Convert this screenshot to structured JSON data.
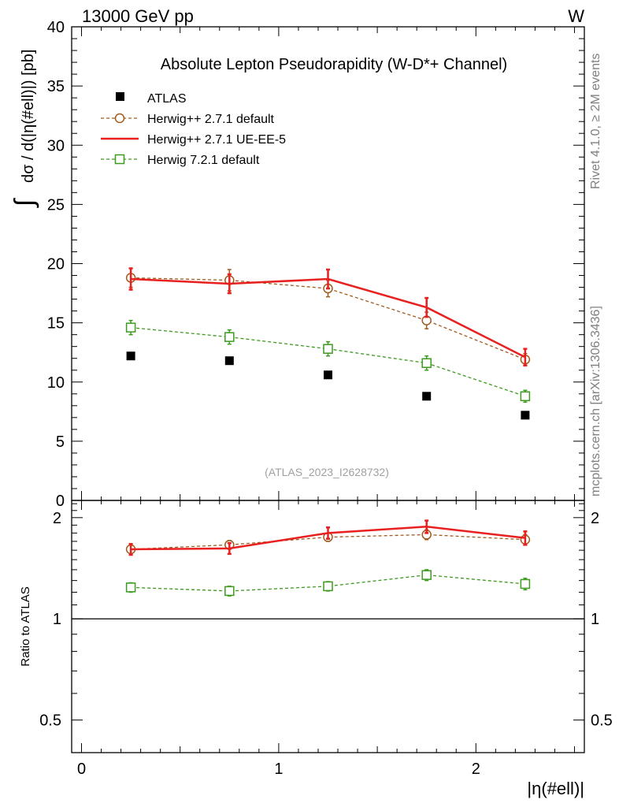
{
  "header": {
    "energy_label": "13000 GeV pp",
    "process_label": "W"
  },
  "side_labels": {
    "rivet": "Rivet 4.1.0, ≥ 2M events",
    "source": "mcplots.cern.ch [arXiv:1306.3436]"
  },
  "chart_data": {
    "type": "line",
    "title": "Absolute Lepton Pseudorapidity (W-D*+ Channel)",
    "analysis_tag": "(ATLAS_2023_I2628732)",
    "xlabel": "|η(#ell)|",
    "ylabel_integral": "∫",
    "ylabel": "dσ / d(|η(#ell)|) [pb]",
    "ratio_ylabel": "Ratio to ATLAS",
    "xlim": [
      -0.05,
      2.55
    ],
    "ylim": [
      0,
      40
    ],
    "ratio_ylim": [
      0.4,
      2.25
    ],
    "x_ticks": [
      0,
      1,
      2
    ],
    "x_tick_labels": [
      "0",
      "1",
      "2"
    ],
    "y_ticks": [
      0,
      5,
      10,
      15,
      20,
      25,
      30,
      35,
      40
    ],
    "y_tick_labels": [
      "0",
      "5",
      "10",
      "15",
      "20",
      "25",
      "30",
      "35",
      "40"
    ],
    "ratio_ticks": [
      0.5,
      1,
      2
    ],
    "ratio_tick_labels": [
      "0.5",
      "1",
      "2"
    ],
    "x": [
      0.25,
      0.75,
      1.25,
      1.75,
      2.25
    ],
    "x_edges": [
      0,
      0.5,
      1.0,
      1.5,
      2.0,
      2.5
    ],
    "data": {
      "name": "ATLAS",
      "values": [
        12.2,
        11.8,
        10.6,
        8.8,
        7.2
      ],
      "color": "#000000"
    },
    "series": [
      {
        "name": "Herwig++ 2.7.1 default",
        "style": "dashed-circle",
        "color": "#a05a1e",
        "values": [
          18.8,
          18.6,
          17.9,
          15.2,
          11.9
        ],
        "errors": [
          0.8,
          0.9,
          0.7,
          0.7,
          0.5
        ],
        "ratio": [
          1.61,
          1.66,
          1.75,
          1.78,
          1.72
        ],
        "ratio_errors": [
          0.05,
          0.05,
          0.05,
          0.06,
          0.06
        ]
      },
      {
        "name": "Herwig++ 2.7.1 UE-EE-5",
        "style": "solid",
        "color": "#e8201f",
        "values": [
          18.7,
          18.3,
          18.7,
          16.3,
          12.1
        ],
        "errors": [
          0.9,
          0.8,
          0.8,
          0.8,
          0.7
        ],
        "ratio": [
          1.61,
          1.62,
          1.8,
          1.88,
          1.74
        ],
        "ratio_errors": [
          0.06,
          0.06,
          0.07,
          0.08,
          0.08
        ]
      },
      {
        "name": "Herwig 7.2.1 default",
        "style": "dashed-square",
        "color": "#3c9a1e",
        "values": [
          14.6,
          13.8,
          12.8,
          11.6,
          8.8
        ],
        "errors": [
          0.6,
          0.6,
          0.6,
          0.6,
          0.5
        ],
        "ratio": [
          1.24,
          1.21,
          1.25,
          1.35,
          1.27
        ],
        "ratio_errors": [
          0.04,
          0.04,
          0.04,
          0.05,
          0.05
        ]
      }
    ]
  }
}
